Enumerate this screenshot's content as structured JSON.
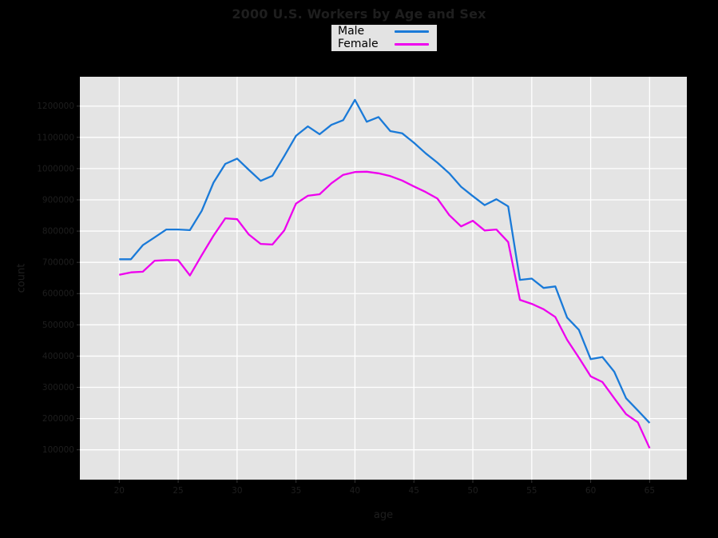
{
  "figure": {
    "title": "2000 U.S. Workers by Age and Sex",
    "xlabel": "age",
    "ylabel": "count",
    "background_color": "#000000",
    "panel_color": "#e4e4e4",
    "grid_color": "#ffffff",
    "text_color": "#1e1e1e",
    "legend_bg": "#e3e3e3"
  },
  "legend": {
    "items": [
      {
        "label": "Male",
        "color": "#1a7ad8"
      },
      {
        "label": "Female",
        "color": "#ee00ee"
      }
    ]
  },
  "chart_data": {
    "type": "line",
    "title": "2000 U.S. Workers by Age and Sex",
    "xlabel": "age",
    "ylabel": "count",
    "grid": true,
    "legend_position": "upper center (above panel)",
    "xlim": [
      16.66,
      68.16
    ],
    "ylim": [
      4500,
      1294000
    ],
    "xticks": [
      20,
      25,
      30,
      35,
      40,
      45,
      50,
      55,
      60,
      65
    ],
    "yticks": [
      100000,
      200000,
      300000,
      400000,
      500000,
      600000,
      700000,
      800000,
      900000,
      1000000,
      1100000,
      1200000
    ],
    "x": [
      20,
      21,
      22,
      23,
      24,
      25,
      26,
      27,
      28,
      29,
      30,
      31,
      32,
      33,
      34,
      35,
      36,
      37,
      38,
      39,
      40,
      41,
      42,
      43,
      44,
      45,
      46,
      47,
      48,
      49,
      50,
      51,
      52,
      53,
      54,
      55,
      56,
      57,
      58,
      59,
      60,
      61,
      62,
      63,
      64,
      65
    ],
    "series": [
      {
        "name": "Male",
        "color": "#1a7ad8",
        "values": [
          710000,
          710000,
          755000,
          780000,
          805000,
          805000,
          803000,
          865000,
          955000,
          1015000,
          1032000,
          996000,
          961000,
          977000,
          1040000,
          1105000,
          1135000,
          1110000,
          1140000,
          1155000,
          1220000,
          1150000,
          1165000,
          1120000,
          1113000,
          1083000,
          1049000,
          1019000,
          985000,
          942000,
          912000,
          883000,
          902000,
          879000,
          644000,
          648000,
          618000,
          623000,
          523000,
          484000,
          390000,
          397000,
          350000,
          265000,
          226000,
          186000
        ]
      },
      {
        "name": "Female",
        "color": "#ee00ee",
        "values": [
          660000,
          668000,
          670000,
          705000,
          707000,
          707000,
          658000,
          723000,
          785000,
          841000,
          838000,
          789000,
          759000,
          757000,
          802000,
          888000,
          913000,
          918000,
          953000,
          980000,
          989000,
          990000,
          985000,
          976000,
          962000,
          943000,
          925000,
          904000,
          851000,
          815000,
          833000,
          802000,
          805000,
          765000,
          580000,
          567000,
          550000,
          525000,
          452000,
          395000,
          335000,
          317000,
          265000,
          214000,
          188000,
          105000
        ]
      }
    ]
  }
}
